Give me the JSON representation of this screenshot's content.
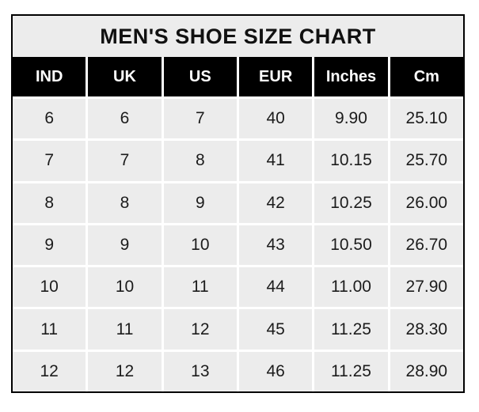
{
  "chart_data": {
    "type": "table",
    "title": "MEN'S SHOE SIZE CHART",
    "columns": [
      "IND",
      "UK",
      "US",
      "EUR",
      "Inches",
      "Cm"
    ],
    "rows": [
      [
        "6",
        "6",
        "7",
        "40",
        "9.90",
        "25.10"
      ],
      [
        "7",
        "7",
        "8",
        "41",
        "10.15",
        "25.70"
      ],
      [
        "8",
        "8",
        "9",
        "42",
        "10.25",
        "26.00"
      ],
      [
        "9",
        "9",
        "10",
        "43",
        "10.50",
        "26.70"
      ],
      [
        "10",
        "10",
        "11",
        "44",
        "11.00",
        "27.90"
      ],
      [
        "11",
        "11",
        "12",
        "45",
        "11.25",
        "28.30"
      ],
      [
        "12",
        "12",
        "13",
        "46",
        "11.25",
        "28.90"
      ]
    ],
    "layout_hints": {
      "header_background": "#000000",
      "header_text_color": "#ffffff",
      "cell_background": "#ececec",
      "grid_line_color": "#ffffff",
      "outer_border_color": "#000000",
      "title_background": "#ececec"
    }
  }
}
